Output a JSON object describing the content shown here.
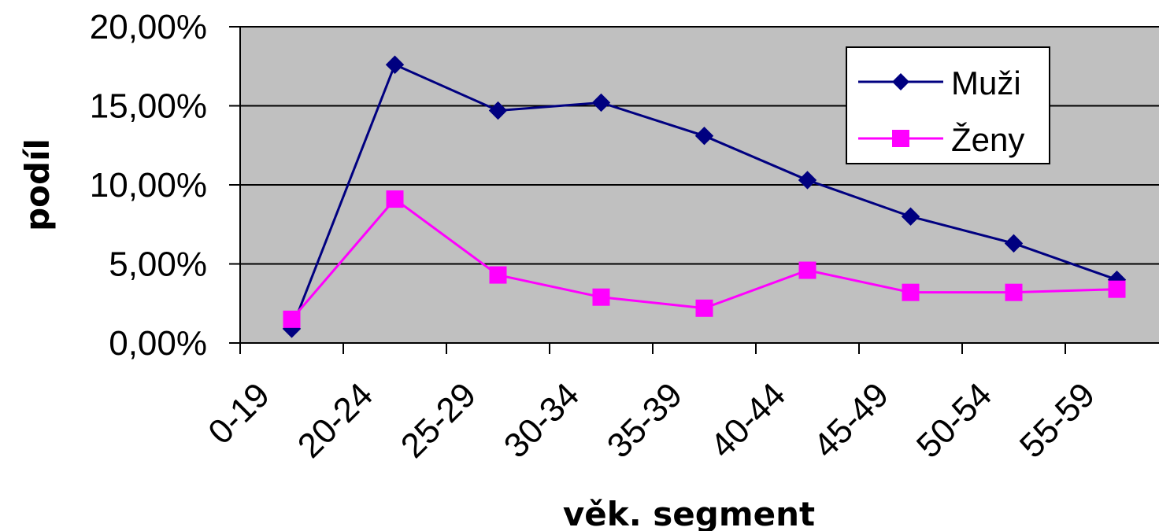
{
  "chart_data": {
    "type": "line",
    "categories": [
      "0-19",
      "20-24",
      "25-29",
      "30-34",
      "35-39",
      "40-44",
      "45-49",
      "50-54",
      "55-59"
    ],
    "series": [
      {
        "name": "Muži",
        "values": [
          0.9,
          17.6,
          14.7,
          15.2,
          13.1,
          10.3,
          8.0,
          6.3,
          4.0
        ],
        "color": "#000080",
        "marker": "diamond"
      },
      {
        "name": "Ženy",
        "values": [
          1.5,
          9.1,
          4.3,
          2.9,
          2.2,
          4.6,
          3.2,
          3.2,
          3.4
        ],
        "color": "#ff00ff",
        "marker": "square"
      }
    ],
    "ylabel": "podíl",
    "xlabel": "věk. segment",
    "ylim": [
      0,
      20
    ],
    "yticks": [
      "0,00%",
      "5,00%",
      "10,00%",
      "15,00%",
      "20,00%"
    ],
    "grid": true,
    "plot_background": "#c0c0c0",
    "legend_position": "top-right"
  }
}
